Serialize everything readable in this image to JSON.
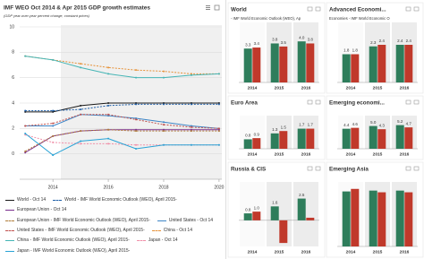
{
  "chart_data": [
    {
      "type": "line",
      "title": "IMF WEO Oct 2014 & Apr 2015 GDP growth estimates",
      "subtitle": "(GDP year-over-year percent change, constant prices)",
      "x": [
        2013,
        2014,
        2015,
        2016,
        2017,
        2018,
        2019,
        2020
      ],
      "xlim": [
        2012.8,
        2020.1
      ],
      "xticks": [
        2014,
        2016,
        2018,
        2020
      ],
      "ylim": [
        -2,
        10
      ],
      "yticks": [
        0,
        2,
        4,
        6,
        8,
        10
      ],
      "grid": true,
      "series": [
        {
          "name": "World - Oct 14",
          "color": "#1a1a1a",
          "dash": false,
          "values": [
            3.3,
            3.3,
            3.8,
            4.0,
            4.0,
            4.0,
            4.0,
            4.0
          ]
        },
        {
          "name": "World - IMF World Economic Outlook (WEO), April 2015-",
          "color": "#1f5fa8",
          "dash": true,
          "values": [
            3.4,
            3.4,
            3.5,
            3.8,
            3.9,
            3.9,
            3.9,
            3.9
          ]
        },
        {
          "name": "European Union - Oct 14",
          "color": "#7b2f8e",
          "dash": false,
          "values": [
            0.1,
            1.4,
            1.8,
            1.9,
            1.9,
            1.9,
            1.9,
            1.9
          ]
        },
        {
          "name": "European Union - IMF World Economic Outlook (WEO), April 2015-",
          "color": "#b07d3a",
          "dash": true,
          "values": [
            0.2,
            1.4,
            1.8,
            1.9,
            1.8,
            1.8,
            1.8,
            1.8
          ]
        },
        {
          "name": "United States - Oct 14",
          "color": "#3d85c6",
          "dash": false,
          "values": [
            2.2,
            2.2,
            3.1,
            3.0,
            2.8,
            2.5,
            2.2,
            2.0
          ]
        },
        {
          "name": "United States - IMF World Economic Outlook (WEO), April 2015-",
          "color": "#c0504d",
          "dash": true,
          "values": [
            2.2,
            2.4,
            3.1,
            3.1,
            2.7,
            2.3,
            2.1,
            2.0
          ]
        },
        {
          "name": "China - Oct 14",
          "color": "#e69138",
          "dash": true,
          "values": [
            7.7,
            7.4,
            7.1,
            6.8,
            6.6,
            6.5,
            6.3,
            6.3
          ]
        },
        {
          "name": "China - IMF World Economic Outlook (WEO), April 2015-",
          "color": "#45b5b5",
          "dash": false,
          "values": [
            7.7,
            7.4,
            6.8,
            6.3,
            6.0,
            6.0,
            6.2,
            6.3
          ]
        },
        {
          "name": "Japan - Oct 14",
          "color": "#f08fa8",
          "dash": true,
          "values": [
            1.5,
            0.9,
            0.8,
            0.8,
            0.7,
            0.7,
            0.7,
            0.7
          ]
        },
        {
          "name": "Japan - IMF World Economic Outlook (WEO), April 2015-",
          "color": "#29a3d6",
          "dash": false,
          "values": [
            1.6,
            -0.1,
            1.0,
            1.2,
            0.4,
            0.7,
            0.7,
            0.7
          ]
        }
      ]
    },
    {
      "type": "bar",
      "title": "World",
      "subtitle": "- IMF World Economic Outlook (WEO), Ap",
      "categories": [
        "2014",
        "2015",
        "2016"
      ],
      "ylim": [
        0,
        5.5
      ],
      "series": [
        {
          "color": "#2e7d5b",
          "values": [
            3.3,
            3.8,
            4.0
          ],
          "value_labels": [
            "3.3",
            "3.8",
            "4.0"
          ]
        },
        {
          "color": "#c0392b",
          "values": [
            3.4,
            3.5,
            3.8
          ],
          "value_labels": [
            "3.4",
            "3.5",
            "3.8"
          ]
        }
      ]
    },
    {
      "type": "bar",
      "title": "Advanced Economi...",
      "subtitle": "Economies - IMF World Economic O",
      "categories": [
        "2014",
        "2015",
        "2016"
      ],
      "ylim": [
        0,
        3.6
      ],
      "series": [
        {
          "color": "#2e7d5b",
          "values": [
            1.8,
            2.3,
            2.4
          ],
          "value_labels": [
            "1.8",
            "2.3",
            "2.4"
          ]
        },
        {
          "color": "#c0392b",
          "values": [
            1.8,
            2.4,
            2.4
          ],
          "value_labels": [
            "1.8",
            "2.4",
            "2.4"
          ]
        }
      ]
    },
    {
      "type": "bar",
      "title": "Euro Area",
      "categories": [
        "2014",
        "2015",
        "2016"
      ],
      "ylim": [
        0,
        2.5
      ],
      "series": [
        {
          "color": "#2e7d5b",
          "values": [
            0.8,
            1.3,
            1.7
          ],
          "value_labels": [
            "0.8",
            "1.3",
            "1.7"
          ]
        },
        {
          "color": "#c0392b",
          "values": [
            0.9,
            1.5,
            1.7
          ],
          "value_labels": [
            "0.9",
            "1.5",
            "1.7"
          ]
        }
      ]
    },
    {
      "type": "bar",
      "title": "Emerging economi...",
      "categories": [
        "2014",
        "2015",
        "2016"
      ],
      "ylim": [
        0,
        6.5
      ],
      "series": [
        {
          "color": "#2e7d5b",
          "values": [
            4.4,
            5.0,
            5.2
          ],
          "value_labels": [
            "4.4",
            "5.0",
            "5.2"
          ]
        },
        {
          "color": "#c0392b",
          "values": [
            4.6,
            4.3,
            4.7
          ],
          "value_labels": [
            "4.6",
            "4.3",
            "4.7"
          ]
        }
      ]
    },
    {
      "type": "bar",
      "title": "Russia & CIS",
      "categories": [
        "2014",
        "2015",
        "2016"
      ],
      "ylim": [
        -3,
        4
      ],
      "series": [
        {
          "color": "#2e7d5b",
          "values": [
            0.8,
            1.6,
            2.5
          ],
          "value_labels": [
            "0.8",
            "1.6",
            "2.5"
          ]
        },
        {
          "color": "#c0392b",
          "values": [
            1.0,
            -2.6,
            0.3
          ],
          "value_labels": [
            "1.0",
            null,
            null
          ]
        }
      ]
    },
    {
      "type": "bar",
      "title": "Emerging Asia",
      "categories": [
        "2014",
        "2015",
        "2016"
      ],
      "ylim": [
        0,
        7.2
      ],
      "series": [
        {
          "color": "#2e7d5b",
          "values": [
            6.5,
            6.6,
            6.6
          ]
        },
        {
          "color": "#c0392b",
          "values": [
            6.8,
            6.4,
            6.4
          ]
        }
      ]
    }
  ]
}
